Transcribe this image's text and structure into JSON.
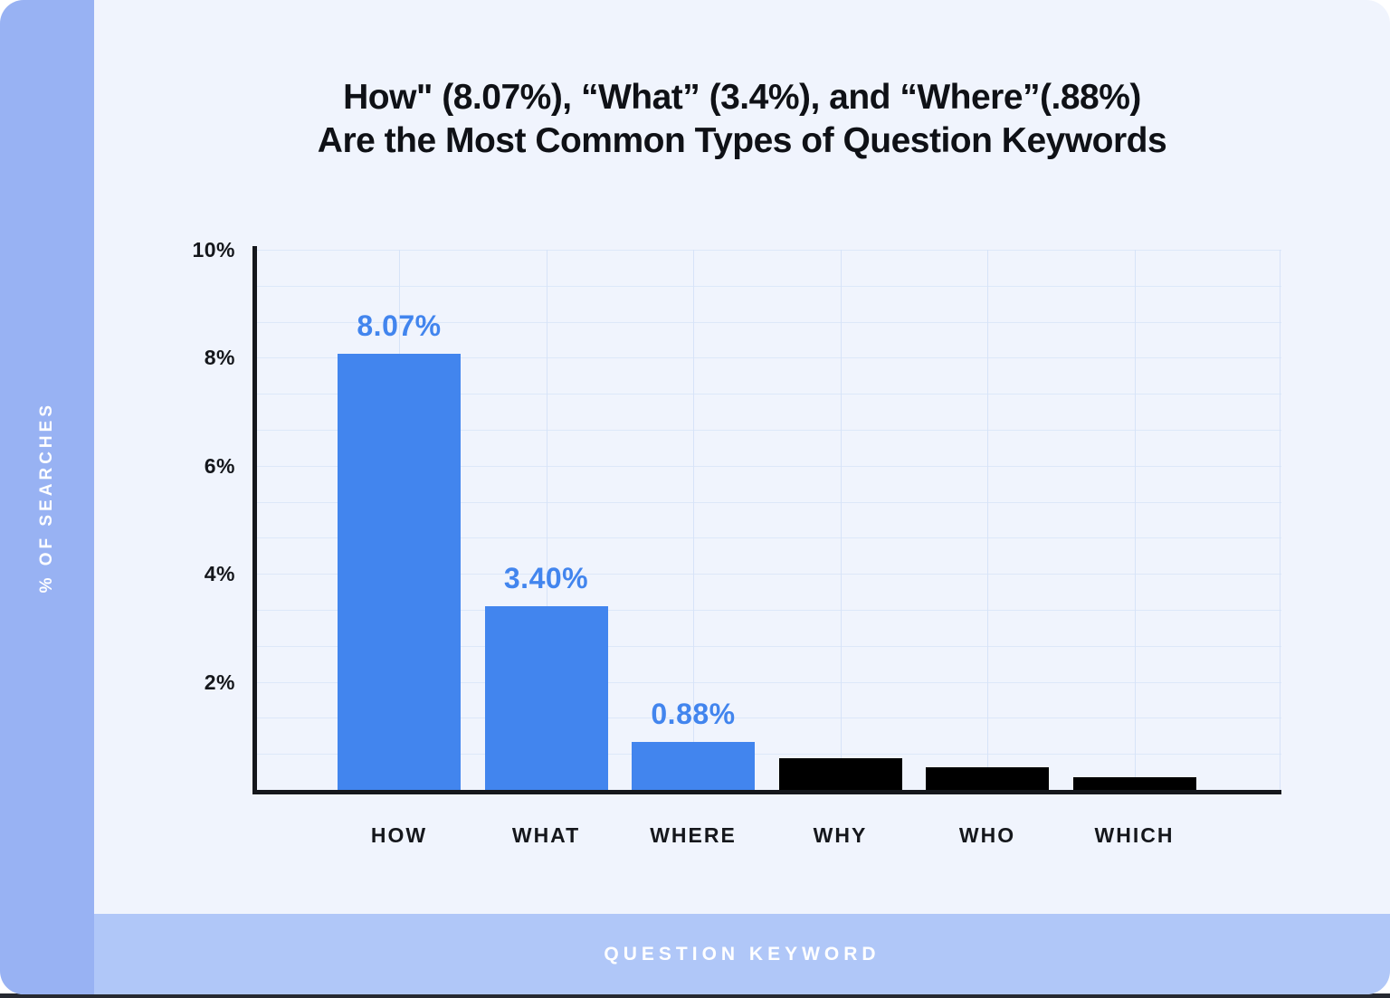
{
  "title": {
    "line1": "How\" (8.07%), “What” (3.4%), and “Where”(.88%)",
    "line2": "Are the Most Common Types of Question Keywords"
  },
  "sidebar": {
    "label": "% OF SEARCHES"
  },
  "footer": {
    "label": "QUESTION KEYWORD"
  },
  "colors": {
    "card_background": "#f0f4fd",
    "sidebar": "#98b2f3",
    "footer_band": "#b0c7f8",
    "bar_blue": "#4285ee",
    "bar_black": "#000000",
    "value_label_blue": "#4285ee",
    "axis": "#15171c",
    "gridline": "#dde8f9"
  },
  "chart_data": {
    "type": "bar",
    "title": "How\" (8.07%), “What” (3.4%), and “Where”(.88%) Are the Most Common Types of Question Keywords",
    "categories": [
      "HOW",
      "WHAT",
      "WHERE",
      "WHY",
      "WHO",
      "WHICH"
    ],
    "values": [
      8.07,
      3.4,
      0.88,
      0.59,
      0.42,
      0.23
    ],
    "bar_labels": [
      "8.07%",
      "3.40%",
      "0.88%",
      "",
      "",
      ""
    ],
    "bar_colors": [
      "#4285ee",
      "#4285ee",
      "#4285ee",
      "#000000",
      "#000000",
      "#000000"
    ],
    "xlabel": "QUESTION KEYWORD",
    "ylabel": "% OF SEARCHES",
    "ylim": [
      0,
      10
    ],
    "yticks": [
      {
        "value": 2,
        "label": "2%"
      },
      {
        "value": 4,
        "label": "4%"
      },
      {
        "value": 6,
        "label": "6%"
      },
      {
        "value": 8,
        "label": "8%"
      },
      {
        "value": 10,
        "label": "10%"
      }
    ],
    "grid": true,
    "legend": false
  }
}
